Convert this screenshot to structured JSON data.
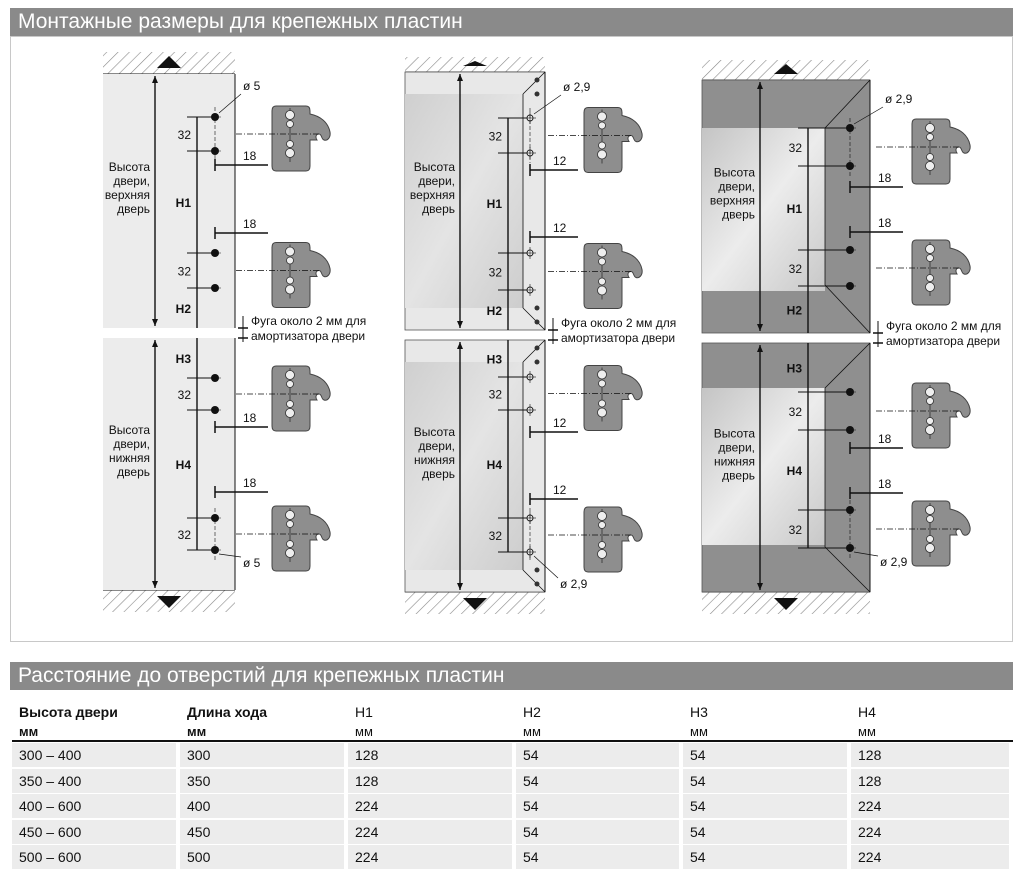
{
  "section1": {
    "title": "Монтажные размеры для крепежных пластин"
  },
  "diagram": {
    "door_upper": [
      "Высота",
      "двери,",
      "верхняя",
      "дверь"
    ],
    "door_lower": [
      "Высота",
      "двери,",
      "нижняя",
      "дверь"
    ],
    "spacing": "32",
    "h1": "H1",
    "h2": "H2",
    "h3": "H3",
    "h4": "H4",
    "gap_note": [
      "Фуга около 2 мм для",
      "амортизатора двери"
    ],
    "panels": [
      {
        "edge_distance": "18",
        "hole_diameter": "ø 5"
      },
      {
        "edge_distance": "12",
        "hole_diameter": "ø 2,9"
      },
      {
        "edge_distance": "18",
        "hole_diameter": "ø 2,9"
      }
    ]
  },
  "section2": {
    "title": "Расстояние до отверстий для крепежных пластин"
  },
  "table": {
    "columns": [
      {
        "label": "Высота двери",
        "unit": "мм"
      },
      {
        "label": "Длина хода",
        "unit": "мм"
      },
      {
        "label": "H1",
        "unit": "мм"
      },
      {
        "label": "H2",
        "unit": "мм"
      },
      {
        "label": "H3",
        "unit": "мм"
      },
      {
        "label": "H4",
        "unit": "мм"
      }
    ],
    "rows": [
      [
        "300 – 400",
        "300",
        "128",
        "54",
        "54",
        "128"
      ],
      [
        "350 – 400",
        "350",
        "128",
        "54",
        "54",
        "128"
      ],
      [
        "400 – 600",
        "400",
        "224",
        "54",
        "54",
        "224"
      ],
      [
        "450 – 600",
        "450",
        "224",
        "54",
        "54",
        "224"
      ],
      [
        "500 – 600",
        "500",
        "224",
        "54",
        "54",
        "224"
      ]
    ]
  }
}
